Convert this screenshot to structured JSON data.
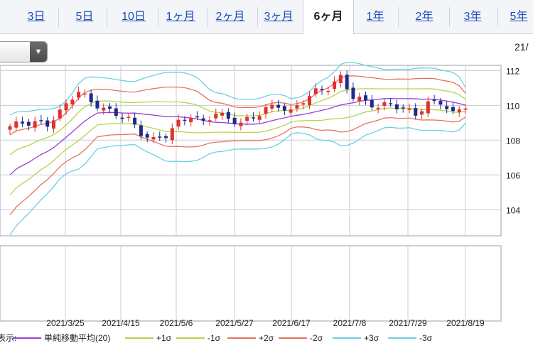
{
  "tabs": [
    {
      "label": "3日",
      "active": false
    },
    {
      "label": "5日",
      "active": false
    },
    {
      "label": "10日",
      "active": false
    },
    {
      "label": "1ヶ月",
      "active": false
    },
    {
      "label": "2ヶ月",
      "active": false
    },
    {
      "label": "3ヶ月",
      "active": false
    },
    {
      "label": "6ヶ月",
      "active": true
    },
    {
      "label": "1年",
      "active": false
    },
    {
      "label": "2年",
      "active": false
    },
    {
      "label": "3年",
      "active": false
    },
    {
      "label": "5年",
      "active": false
    }
  ],
  "toolbar": {
    "dropdown_icon": "chevron-down-icon",
    "date_corner": "21/"
  },
  "colors": {
    "up": "#e03030",
    "down": "#1e2a8a",
    "sma": "#9a3fd4",
    "s1": "#b8d24a",
    "s2": "#e8735a",
    "s3": "#6ecfe0",
    "grid": "#9aa0a6"
  },
  "chart_data": {
    "type": "candlestick",
    "y_ticks": [
      104,
      106,
      108,
      110,
      112
    ],
    "ylim": [
      102.5,
      112.3
    ],
    "x_ticks": [
      "2021/3/25",
      "2021/4/15",
      "2021/5/6",
      "2021/5/27",
      "2021/6/17",
      "2021/7/8",
      "2021/7/29",
      "2021/8/19"
    ],
    "legend_prefix": "表示:",
    "legend": [
      {
        "label": "単純移動平均(20)",
        "color": "#9a3fd4"
      },
      {
        "label": "+1σ",
        "color": "#b8d24a"
      },
      {
        "label": "-1σ",
        "color": "#b8d24a"
      },
      {
        "label": "+2σ",
        "color": "#e8735a"
      },
      {
        "label": "-2σ",
        "color": "#e8735a"
      },
      {
        "label": "+3σ",
        "color": "#6ecfe0"
      },
      {
        "label": "-3σ",
        "color": "#6ecfe0"
      }
    ],
    "series_points": [
      {
        "x": 0,
        "close": 108.8
      },
      {
        "x": 2,
        "close": 109.0
      },
      {
        "x": 4,
        "close": 109.0
      },
      {
        "x": 6,
        "close": 108.9
      },
      {
        "x": 8,
        "close": 109.6
      },
      {
        "x": 10,
        "close": 110.5
      },
      {
        "x": 11,
        "close": 110.8
      },
      {
        "x": 13,
        "close": 110.2
      },
      {
        "x": 15,
        "close": 109.8
      },
      {
        "x": 17,
        "close": 109.5
      },
      {
        "x": 19,
        "close": 109.2
      },
      {
        "x": 21,
        "close": 108.4
      },
      {
        "x": 23,
        "close": 108.0
      },
      {
        "x": 25,
        "close": 108.3
      },
      {
        "x": 27,
        "close": 109.0
      },
      {
        "x": 29,
        "close": 109.4
      },
      {
        "x": 31,
        "close": 109.0
      },
      {
        "x": 33,
        "close": 109.6
      },
      {
        "x": 35,
        "close": 109.2
      },
      {
        "x": 37,
        "close": 109.0
      },
      {
        "x": 39,
        "close": 109.3
      },
      {
        "x": 41,
        "close": 109.8
      },
      {
        "x": 43,
        "close": 110.0
      },
      {
        "x": 45,
        "close": 109.6
      },
      {
        "x": 47,
        "close": 110.3
      },
      {
        "x": 49,
        "close": 110.8
      },
      {
        "x": 51,
        "close": 111.0
      },
      {
        "x": 53,
        "close": 111.6
      },
      {
        "x": 55,
        "close": 110.5
      },
      {
        "x": 57,
        "close": 110.2
      },
      {
        "x": 59,
        "close": 109.9
      },
      {
        "x": 61,
        "close": 110.1
      },
      {
        "x": 63,
        "close": 109.8
      },
      {
        "x": 65,
        "close": 109.5
      },
      {
        "x": 67,
        "close": 110.1
      },
      {
        "x": 69,
        "close": 110.2
      },
      {
        "x": 71,
        "close": 109.5
      },
      {
        "x": 73,
        "close": 110.0
      }
    ]
  }
}
